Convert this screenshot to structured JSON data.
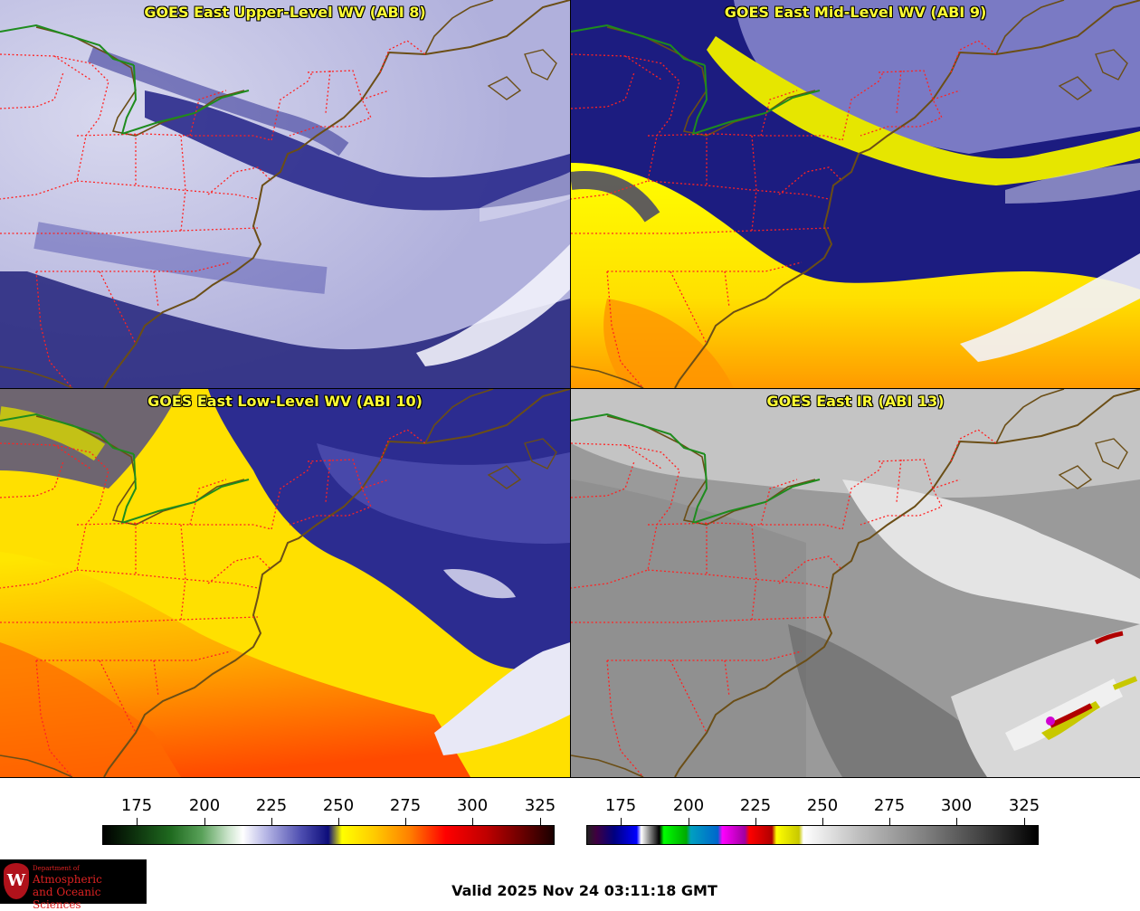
{
  "panels": [
    {
      "title": "GOES East Upper-Level WV (ABI 8)",
      "colormap": "wv"
    },
    {
      "title": "GOES East Mid-Level WV (ABI 9)",
      "colormap": "wv"
    },
    {
      "title": "GOES East Low-Level WV (ABI 10)",
      "colormap": "wv"
    },
    {
      "title": "GOES East IR (ABI 13)",
      "colormap": "ir"
    }
  ],
  "colorbars": [
    {
      "ticks": [
        "175",
        "200",
        "225",
        "250",
        "275",
        "300",
        "325"
      ]
    },
    {
      "ticks": [
        "175",
        "200",
        "225",
        "250",
        "275",
        "300",
        "325"
      ]
    }
  ],
  "logo": {
    "line1": "Department of",
    "line2": "Atmospheric",
    "line3": "and Oceanic Sciences",
    "crest_letter": "W"
  },
  "valid_time": "Valid 2025 Nov 24 03:11:18 GMT",
  "colors": {
    "title_text": "#ffff33",
    "state_borders": "#ff2222",
    "coastline": "#6b4e16",
    "canada_us_border": "#1e8c1e"
  }
}
